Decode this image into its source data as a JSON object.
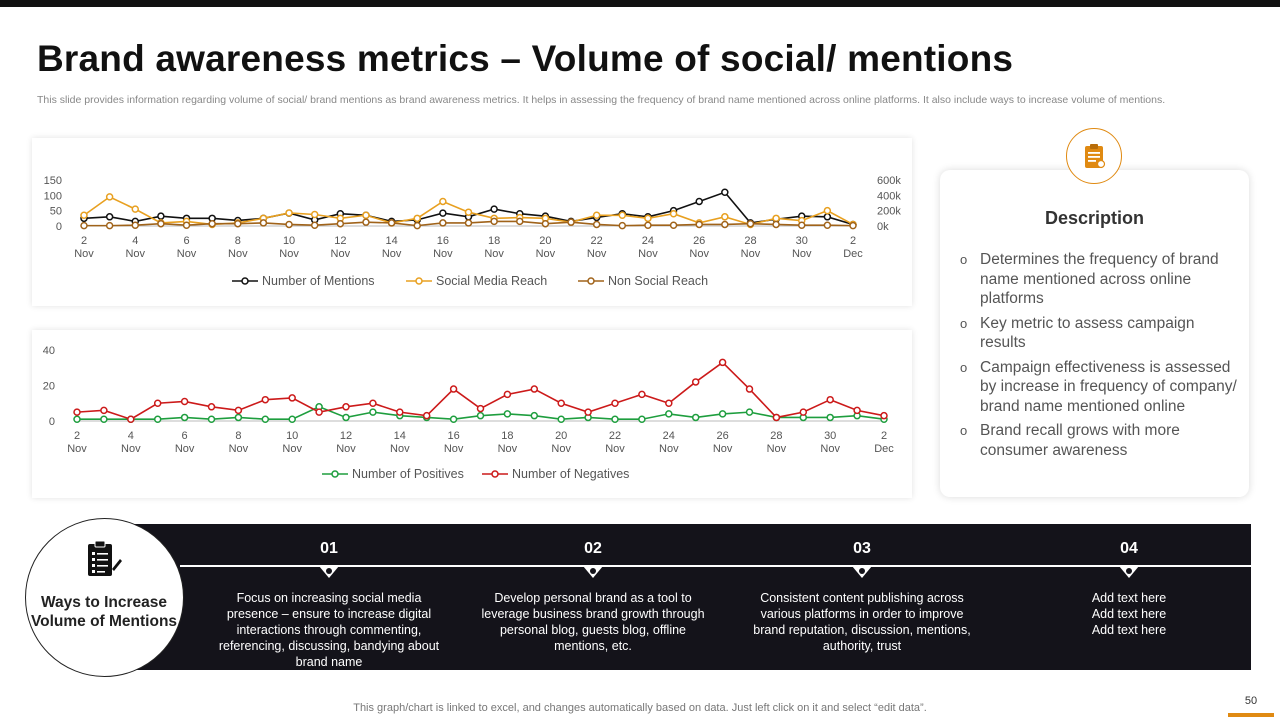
{
  "header": {
    "title": "Brand awareness metrics – Volume of social/ mentions",
    "subtitle": "This slide provides information regarding volume of social/ brand mentions as brand awareness metrics. It helps in assessing the frequency of brand name mentioned across online platforms. It also include ways to increase volume of mentions."
  },
  "chart_data": [
    {
      "type": "line",
      "x": [
        "2 Nov",
        "3 Nov",
        "4 Nov",
        "5 Nov",
        "6 Nov",
        "7 Nov",
        "8 Nov",
        "9 Nov",
        "10 Nov",
        "11 Nov",
        "12 Nov",
        "13 Nov",
        "14 Nov",
        "15 Nov",
        "16 Nov",
        "17 Nov",
        "18 Nov",
        "19 Nov",
        "20 Nov",
        "21 Nov",
        "22 Nov",
        "23 Nov",
        "24 Nov",
        "25 Nov",
        "26 Nov",
        "27 Nov",
        "28 Nov",
        "29 Nov",
        "30 Nov",
        "1 Dec",
        "2 Dec"
      ],
      "x_tick_labels": [
        [
          "2",
          "Nov"
        ],
        [
          "4",
          "Nov"
        ],
        [
          "6",
          "Nov"
        ],
        [
          "8",
          "Nov"
        ],
        [
          "10",
          "Nov"
        ],
        [
          "12",
          "Nov"
        ],
        [
          "14",
          "Nov"
        ],
        [
          "16",
          "Nov"
        ],
        [
          "18",
          "Nov"
        ],
        [
          "20",
          "Nov"
        ],
        [
          "22",
          "Nov"
        ],
        [
          "24",
          "Nov"
        ],
        [
          "26",
          "Nov"
        ],
        [
          "28",
          "Nov"
        ],
        [
          "30",
          "Nov"
        ],
        [
          "2",
          "Dec"
        ]
      ],
      "y_ticks": [
        "0",
        "50",
        "100",
        "150"
      ],
      "ylim": [
        0,
        150
      ],
      "y2_ticks": [
        "0k",
        "200k",
        "400k",
        "600k"
      ],
      "y2lim": [
        0,
        600000
      ],
      "grid": false,
      "legend_position": "bottom",
      "series": [
        {
          "name": "Number of Mentions",
          "axis": "left",
          "color": "#111111",
          "values": [
            25,
            30,
            15,
            32,
            25,
            25,
            18,
            25,
            42,
            20,
            40,
            35,
            15,
            20,
            42,
            30,
            55,
            40,
            32,
            15,
            28,
            40,
            30,
            50,
            80,
            110,
            10,
            22,
            32,
            30,
            5
          ]
        },
        {
          "name": "Social Media Reach",
          "axis": "right",
          "color": "#e8a020",
          "values": [
            140000,
            380000,
            220000,
            40000,
            60000,
            20000,
            40000,
            100000,
            170000,
            150000,
            100000,
            140000,
            40000,
            100000,
            320000,
            180000,
            100000,
            110000,
            100000,
            50000,
            140000,
            140000,
            100000,
            160000,
            40000,
            120000,
            20000,
            100000,
            70000,
            200000,
            20000
          ]
        },
        {
          "name": "Non Social Reach",
          "axis": "right",
          "color": "#a0631a",
          "values": [
            5000,
            5000,
            10000,
            30000,
            10000,
            30000,
            30000,
            40000,
            20000,
            10000,
            30000,
            50000,
            40000,
            5000,
            40000,
            40000,
            60000,
            60000,
            30000,
            50000,
            20000,
            5000,
            10000,
            10000,
            20000,
            20000,
            30000,
            20000,
            10000,
            10000,
            5000
          ]
        }
      ]
    },
    {
      "type": "line",
      "x": [
        "2 Nov",
        "3 Nov",
        "4 Nov",
        "5 Nov",
        "6 Nov",
        "7 Nov",
        "8 Nov",
        "9 Nov",
        "10 Nov",
        "11 Nov",
        "12 Nov",
        "13 Nov",
        "14 Nov",
        "15 Nov",
        "16 Nov",
        "17 Nov",
        "18 Nov",
        "19 Nov",
        "20 Nov",
        "21 Nov",
        "22 Nov",
        "23 Nov",
        "24 Nov",
        "25 Nov",
        "26 Nov",
        "27 Nov",
        "28 Nov",
        "29 Nov",
        "30 Nov",
        "1 Dec",
        "2 Dec"
      ],
      "x_tick_labels": [
        [
          "2",
          "Nov"
        ],
        [
          "4",
          "Nov"
        ],
        [
          "6",
          "Nov"
        ],
        [
          "8",
          "Nov"
        ],
        [
          "10",
          "Nov"
        ],
        [
          "12",
          "Nov"
        ],
        [
          "14",
          "Nov"
        ],
        [
          "16",
          "Nov"
        ],
        [
          "18",
          "Nov"
        ],
        [
          "20",
          "Nov"
        ],
        [
          "22",
          "Nov"
        ],
        [
          "24",
          "Nov"
        ],
        [
          "26",
          "Nov"
        ],
        [
          "28",
          "Nov"
        ],
        [
          "30",
          "Nov"
        ],
        [
          "2",
          "Dec"
        ]
      ],
      "y_ticks": [
        "0",
        "20",
        "40"
      ],
      "ylim": [
        0,
        40
      ],
      "grid": false,
      "legend_position": "bottom",
      "series": [
        {
          "name": "Number of Positives",
          "color": "#1e9e3e",
          "values": [
            1,
            1,
            1,
            1,
            2,
            1,
            2,
            1,
            1,
            8,
            2,
            5,
            3,
            2,
            1,
            3,
            4,
            3,
            1,
            2,
            1,
            1,
            4,
            2,
            4,
            5,
            2,
            2,
            2,
            3,
            1
          ]
        },
        {
          "name": "Number of Negatives",
          "color": "#cc1a1a",
          "values": [
            5,
            6,
            1,
            10,
            11,
            8,
            6,
            12,
            13,
            5,
            8,
            10,
            5,
            3,
            18,
            7,
            15,
            18,
            10,
            5,
            10,
            15,
            10,
            22,
            33,
            18,
            2,
            5,
            12,
            6,
            3
          ]
        }
      ]
    }
  ],
  "description": {
    "title": "Description",
    "items": [
      "Determines the frequency  of brand name mentioned across online platforms",
      "Key metric to assess campaign results",
      "Campaign effectiveness is assessed by increase in frequency of company/ brand name mentioned online",
      "Brand recall grows with more consumer awareness"
    ],
    "icon": "clipboard-icon",
    "accent_color": "#e08a12"
  },
  "ways": {
    "title": "Ways to Increase Volume of Mentions",
    "icon": "checklist-icon",
    "steps": [
      {
        "number": "01",
        "text": "Focus on increasing social media presence – ensure to increase digital interactions through commenting, referencing, discussing, bandying about brand name"
      },
      {
        "number": "02",
        "text": "Develop personal brand as a tool to leverage  business brand growth through personal blog, guests blog, offline mentions, etc."
      },
      {
        "number": "03",
        "text": "Consistent content publishing across various platforms in order to improve brand reputation, discussion, mentions, authority, trust"
      },
      {
        "number": "04",
        "text": "Add text here Add text here Add text here"
      }
    ]
  },
  "footer": {
    "note": "This graph/chart is linked to excel,  and changes automatically based on data. Just left click on it and select “edit data”.",
    "page_number": "50"
  }
}
